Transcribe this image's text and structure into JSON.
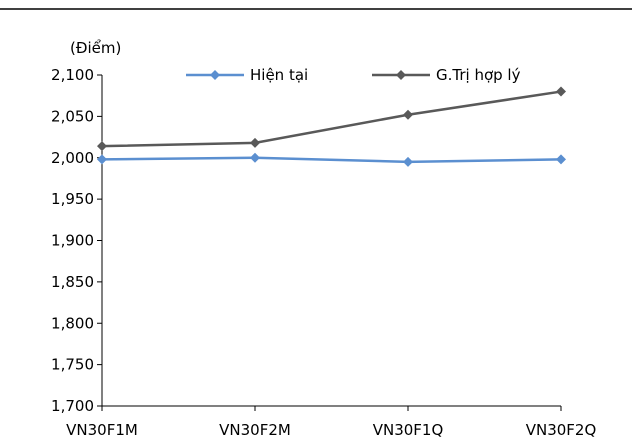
{
  "chart_data": {
    "type": "line",
    "unit_label": "(Điểm)",
    "categories": [
      "VN30F1M",
      "VN30F2M",
      "VN30F1Q",
      "VN30F2Q"
    ],
    "ylim": [
      1700,
      2100
    ],
    "yticks": [
      1700,
      1750,
      1800,
      1850,
      1900,
      1950,
      2000,
      2050,
      2100
    ],
    "ytick_labels": [
      "1,700",
      "1,750",
      "1,800",
      "1,850",
      "1,900",
      "1,950",
      "2,000",
      "2,050",
      "2,100"
    ],
    "grid": false,
    "legend_position": "top",
    "series": [
      {
        "name": "Hiện tại",
        "values": [
          1998,
          2000,
          1995,
          1998
        ],
        "color": "#5b8fd0"
      },
      {
        "name": "G.Trị hợp lý",
        "values": [
          2014,
          2018,
          2052,
          2080
        ],
        "color": "#595959"
      }
    ]
  }
}
